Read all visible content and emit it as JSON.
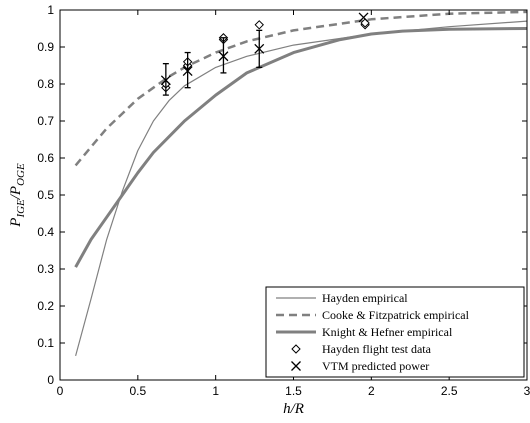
{
  "chart_data": {
    "type": "line",
    "title": "",
    "xlabel": "h/R",
    "ylabel": "P_IGE/P_OGE",
    "xlim": [
      0,
      3
    ],
    "ylim": [
      0,
      1
    ],
    "x_ticks": [
      "0",
      "0.5",
      "1",
      "1.5",
      "2",
      "2.5",
      "3"
    ],
    "y_ticks": [
      "0",
      "0.1",
      "0.2",
      "0.3",
      "0.4",
      "0.5",
      "0.6",
      "0.7",
      "0.8",
      "0.9",
      "1"
    ],
    "grid": false,
    "legend_position": "bottom-right",
    "series": [
      {
        "name": "Hayden empirical",
        "kind": "line",
        "style": "thin-solid",
        "color": "#808080",
        "points": [
          [
            0.1,
            0.065
          ],
          [
            0.2,
            0.22
          ],
          [
            0.3,
            0.38
          ],
          [
            0.4,
            0.51
          ],
          [
            0.5,
            0.62
          ],
          [
            0.6,
            0.7
          ],
          [
            0.7,
            0.755
          ],
          [
            0.8,
            0.795
          ],
          [
            1.0,
            0.845
          ],
          [
            1.2,
            0.875
          ],
          [
            1.5,
            0.905
          ],
          [
            2.0,
            0.935
          ],
          [
            2.5,
            0.955
          ],
          [
            3.0,
            0.97
          ]
        ]
      },
      {
        "name": "Cooke & Fitzpatrick empirical",
        "kind": "line",
        "style": "dashed",
        "color": "#808080",
        "points": [
          [
            0.1,
            0.58
          ],
          [
            0.2,
            0.63
          ],
          [
            0.3,
            0.68
          ],
          [
            0.4,
            0.72
          ],
          [
            0.5,
            0.76
          ],
          [
            0.6,
            0.79
          ],
          [
            0.7,
            0.82
          ],
          [
            0.8,
            0.845
          ],
          [
            1.0,
            0.885
          ],
          [
            1.2,
            0.915
          ],
          [
            1.5,
            0.945
          ],
          [
            2.0,
            0.975
          ],
          [
            2.5,
            0.99
          ],
          [
            3.0,
            0.995
          ]
        ]
      },
      {
        "name": "Knight & Hefner empirical",
        "kind": "line",
        "style": "thick-solid",
        "color": "#808080",
        "points": [
          [
            0.1,
            0.305
          ],
          [
            0.2,
            0.38
          ],
          [
            0.3,
            0.44
          ],
          [
            0.4,
            0.5
          ],
          [
            0.5,
            0.56
          ],
          [
            0.6,
            0.615
          ],
          [
            0.8,
            0.7
          ],
          [
            1.0,
            0.77
          ],
          [
            1.2,
            0.83
          ],
          [
            1.5,
            0.885
          ],
          [
            1.8,
            0.92
          ],
          [
            2.0,
            0.935
          ],
          [
            2.2,
            0.943
          ],
          [
            2.5,
            0.948
          ],
          [
            3.0,
            0.95
          ]
        ]
      },
      {
        "name": "Hayden flight test data",
        "kind": "markers",
        "marker": "diamond",
        "color": "#000000",
        "points": [
          [
            0.68,
            0.79
          ],
          [
            0.68,
            0.8
          ],
          [
            0.82,
            0.85
          ],
          [
            0.82,
            0.86
          ],
          [
            1.05,
            0.92
          ],
          [
            1.05,
            0.925
          ],
          [
            1.28,
            0.96
          ],
          [
            1.96,
            0.96
          ],
          [
            1.96,
            0.965
          ]
        ]
      },
      {
        "name": "VTM predicted power",
        "kind": "markers",
        "marker": "x",
        "color": "#000000",
        "points": [
          [
            0.68,
            0.81
          ],
          [
            0.82,
            0.835
          ],
          [
            1.05,
            0.875
          ],
          [
            1.28,
            0.895
          ],
          [
            1.95,
            0.98
          ]
        ],
        "error_bars": [
          [
            0.68,
            0.77,
            0.855
          ],
          [
            0.82,
            0.79,
            0.885
          ],
          [
            1.05,
            0.83,
            0.925
          ],
          [
            1.28,
            0.845,
            0.945
          ]
        ]
      }
    ]
  }
}
